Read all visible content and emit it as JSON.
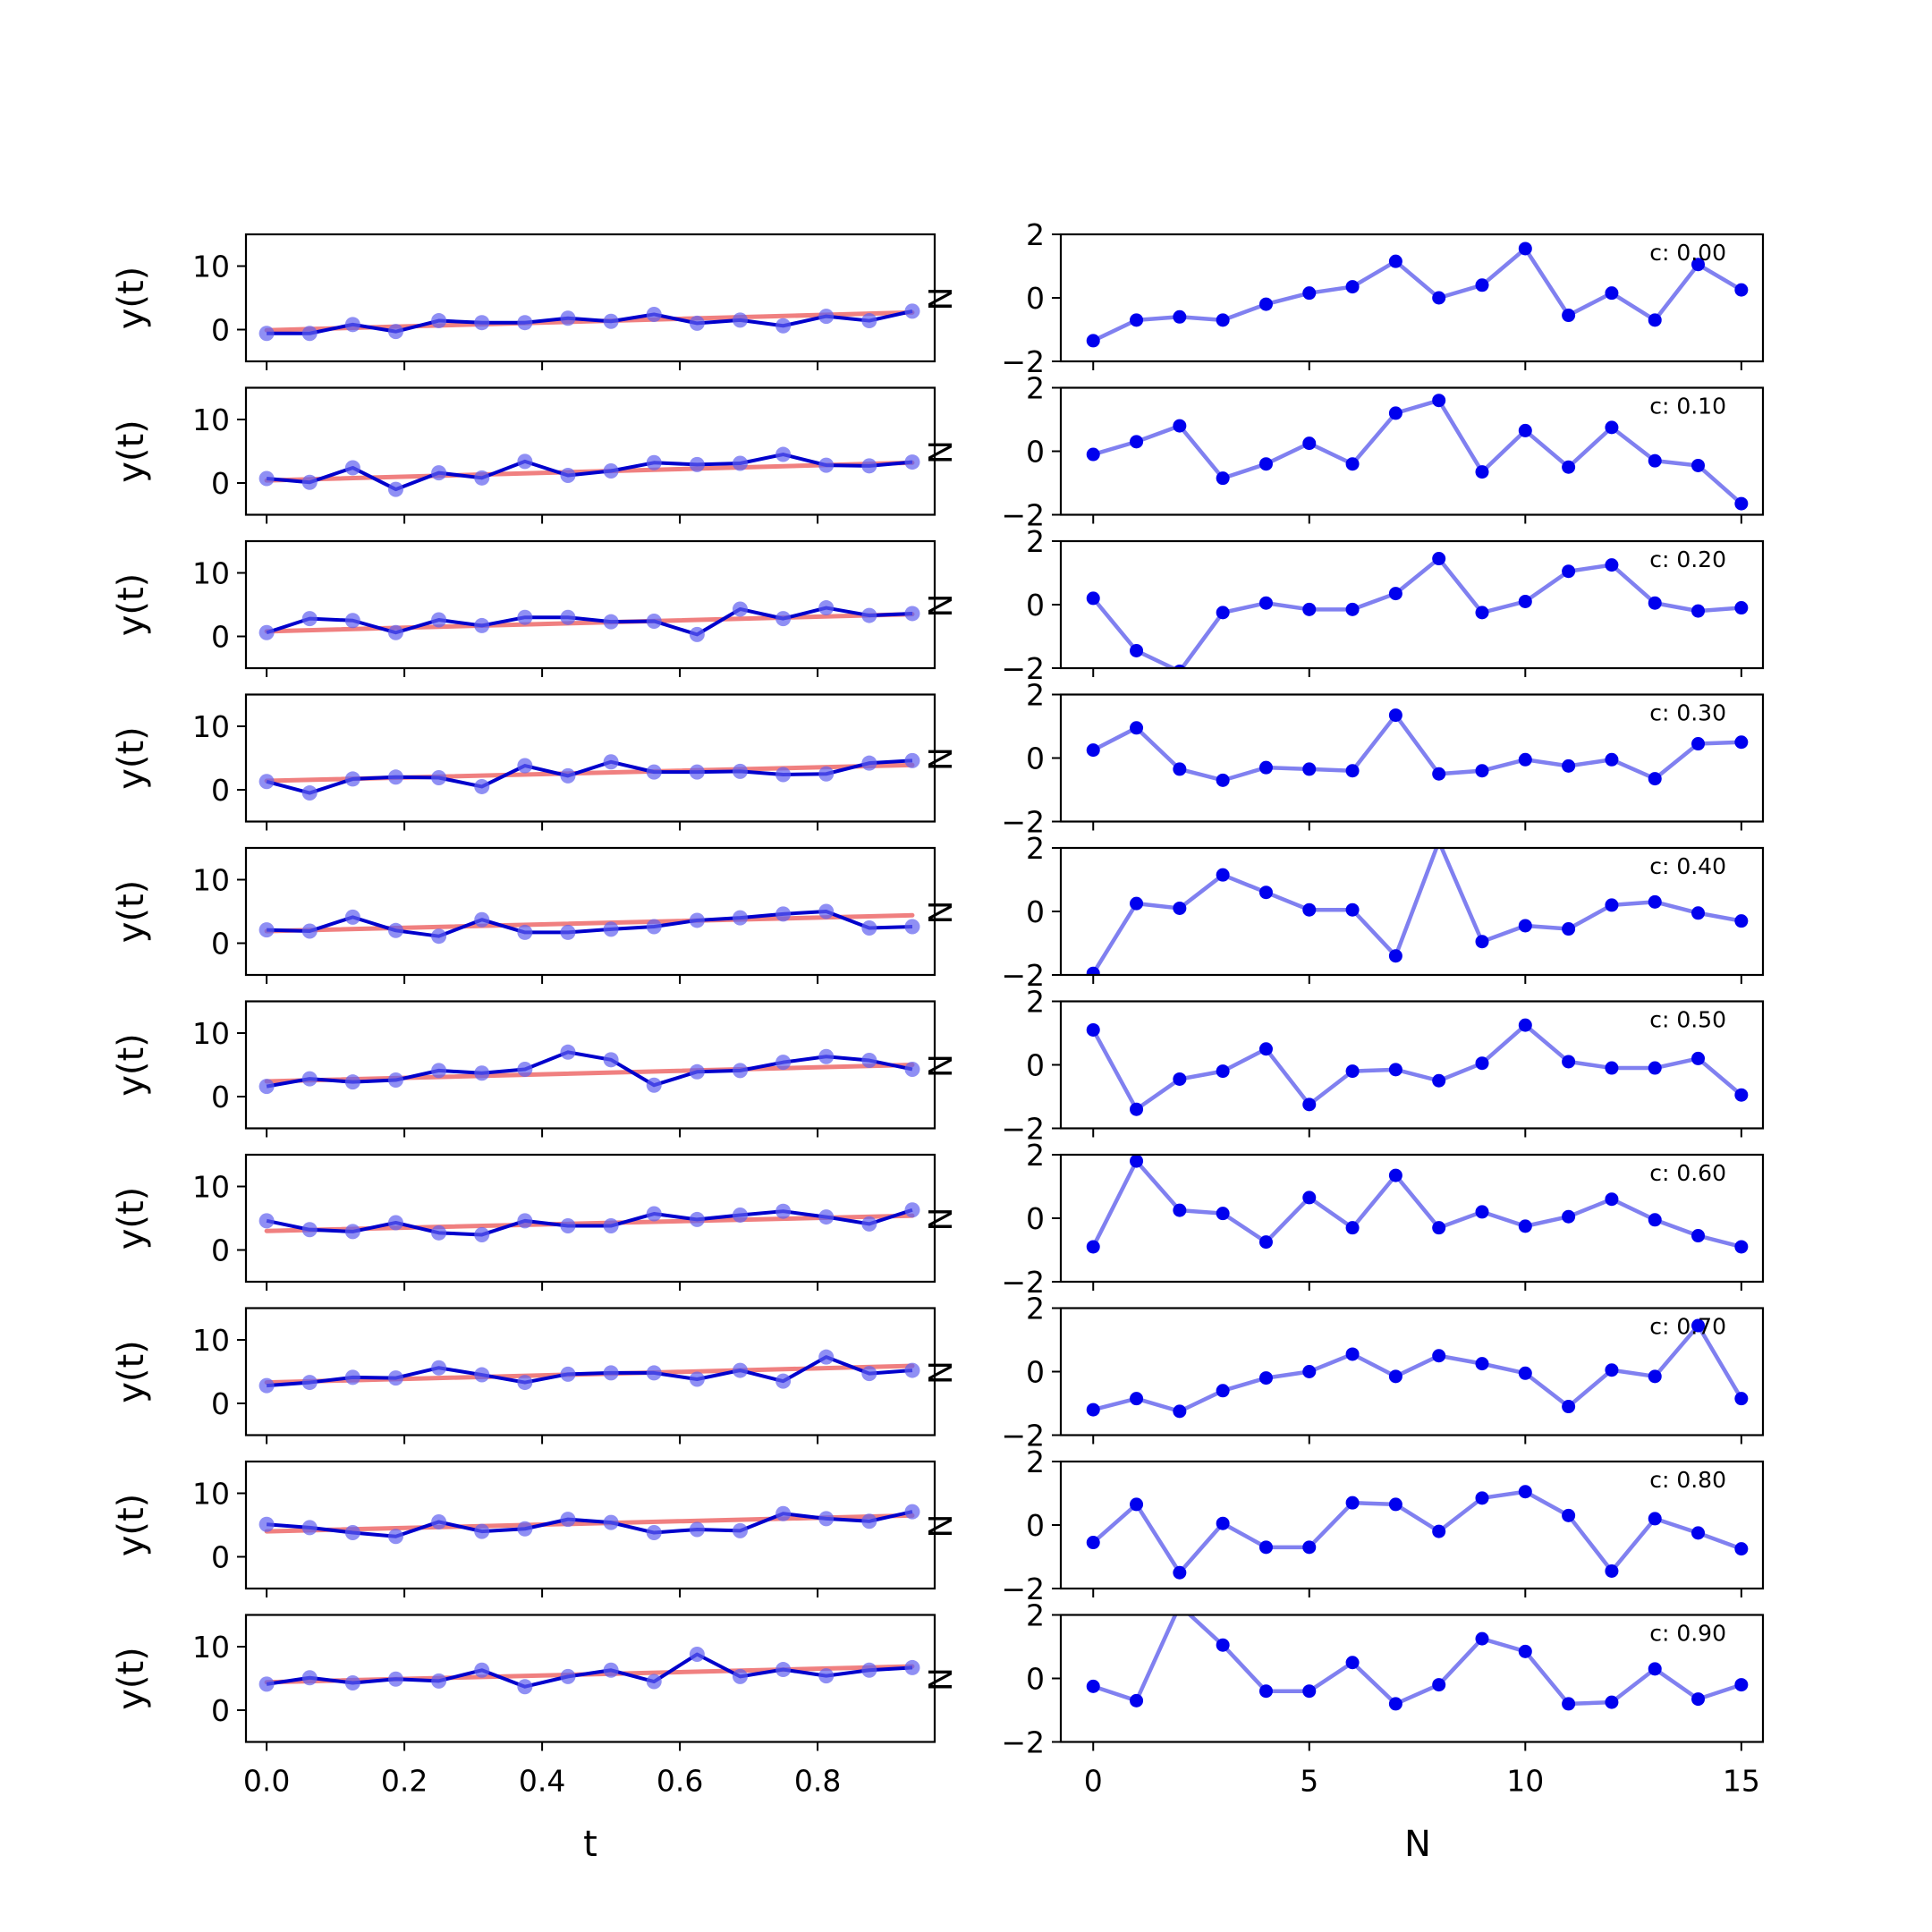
{
  "figure": {
    "left_xlabel": "t",
    "right_xlabel": "N",
    "left_ylabel": "y(t)",
    "right_ylabel_fragment": "N"
  },
  "colors": {
    "fit_line": "#f08080",
    "data_line": "#0000cc",
    "data_points": "#6060f0",
    "resid_line": "#8080f0",
    "resid_points": "#0000ee"
  },
  "chart_data": [
    {
      "type": "line",
      "panel": "left",
      "x": [
        0.0,
        0.0625,
        0.125,
        0.1875,
        0.25,
        0.3125,
        0.375,
        0.4375,
        0.5,
        0.5625,
        0.625,
        0.6875,
        0.75,
        0.8125,
        0.875,
        0.9375
      ],
      "xlim": [
        -0.03,
        0.97
      ],
      "ylim": [
        -5,
        15
      ],
      "xticks": [
        0.0,
        0.2,
        0.4,
        0.6,
        0.8
      ],
      "xtick_labels": [
        "0.0",
        "0.2",
        "0.4",
        "0.6",
        "0.8"
      ],
      "yticks": [
        0,
        10
      ],
      "ytick_labels": [
        "0",
        "10"
      ],
      "rows": [
        {
          "y": [
            -0.6,
            -0.6,
            0.8,
            -0.3,
            1.4,
            1.1,
            1.1,
            1.8,
            1.3,
            2.4,
            1.0,
            1.5,
            0.6,
            2.1,
            1.4,
            2.9
          ],
          "fit": [
            -0.1,
            2.7
          ]
        },
        {
          "y": [
            0.7,
            0.1,
            2.4,
            -1.0,
            1.6,
            0.8,
            3.4,
            1.2,
            1.9,
            3.2,
            2.9,
            3.1,
            4.5,
            2.8,
            2.7,
            3.3
          ],
          "fit": [
            0.4,
            3.2
          ]
        },
        {
          "y": [
            0.6,
            2.8,
            2.5,
            0.6,
            2.6,
            1.7,
            3.0,
            3.0,
            2.3,
            2.4,
            0.3,
            4.3,
            2.8,
            4.5,
            3.3,
            3.6
          ],
          "fit": [
            0.8,
            3.5
          ]
        },
        {
          "y": [
            1.3,
            -0.5,
            1.7,
            2.0,
            1.9,
            0.5,
            3.8,
            2.2,
            4.4,
            2.8,
            2.8,
            2.9,
            2.4,
            2.5,
            4.2,
            4.6
          ],
          "fit": [
            1.4,
            3.9
          ]
        },
        {
          "y": [
            2.1,
            1.9,
            4.1,
            2.0,
            1.1,
            3.7,
            1.7,
            1.7,
            2.2,
            2.6,
            3.6,
            4.0,
            4.6,
            5.0,
            2.4,
            2.6
          ],
          "fit": [
            1.9,
            4.4
          ]
        },
        {
          "y": [
            1.6,
            2.8,
            2.3,
            2.6,
            4.1,
            3.7,
            4.3,
            7.0,
            5.8,
            1.8,
            3.9,
            4.1,
            5.4,
            6.3,
            5.7,
            4.3
          ],
          "fit": [
            2.4,
            5.0
          ]
        },
        {
          "y": [
            4.6,
            3.2,
            2.9,
            4.3,
            2.7,
            2.4,
            4.6,
            3.8,
            3.8,
            5.7,
            4.8,
            5.5,
            6.1,
            5.2,
            4.1,
            6.3
          ],
          "fit": [
            3.0,
            5.4
          ]
        },
        {
          "y": [
            2.8,
            3.3,
            4.1,
            4.0,
            5.6,
            4.5,
            3.3,
            4.6,
            4.8,
            4.8,
            3.8,
            5.2,
            3.5,
            7.3,
            4.7,
            5.2
          ],
          "fit": [
            3.3,
            5.9
          ]
        },
        {
          "y": [
            5.1,
            4.6,
            3.8,
            3.2,
            5.5,
            4.0,
            4.4,
            5.9,
            5.4,
            3.8,
            4.3,
            4.1,
            6.8,
            6.0,
            5.6,
            7.1
          ],
          "fit": [
            4.0,
            6.5
          ]
        },
        {
          "y": [
            4.1,
            5.1,
            4.3,
            4.9,
            4.6,
            6.3,
            3.7,
            5.3,
            6.3,
            4.5,
            8.8,
            5.3,
            6.4,
            5.4,
            6.3,
            6.7
          ],
          "fit": [
            4.4,
            6.9
          ]
        }
      ]
    },
    {
      "type": "line",
      "panel": "right",
      "x": [
        0,
        1,
        2,
        3,
        4,
        5,
        6,
        7,
        8,
        9,
        10,
        11,
        12,
        13,
        14,
        15
      ],
      "xlim": [
        -0.75,
        15.5
      ],
      "ylim": [
        -2,
        2
      ],
      "xticks": [
        0,
        5,
        10,
        15
      ],
      "xtick_labels": [
        "0",
        "5",
        "10",
        "15"
      ],
      "yticks": [
        -2,
        0,
        2
      ],
      "ytick_labels": [
        "−2",
        "0",
        "2"
      ],
      "rows": [
        {
          "label": "c: 0.00",
          "y": [
            -1.35,
            -0.7,
            -0.6,
            -0.7,
            -0.2,
            0.15,
            0.35,
            1.15,
            0.0,
            0.4,
            1.55,
            -0.55,
            0.15,
            -0.7,
            1.05,
            0.25
          ]
        },
        {
          "label": "c: 0.10",
          "y": [
            -0.1,
            0.3,
            0.8,
            -0.85,
            -0.4,
            0.25,
            -0.4,
            1.2,
            1.6,
            -0.65,
            0.65,
            -0.5,
            0.75,
            -0.3,
            -0.45,
            -1.65
          ]
        },
        {
          "label": "c: 0.20",
          "y": [
            0.2,
            -1.45,
            -2.1,
            -0.25,
            0.05,
            -0.15,
            -0.15,
            0.35,
            1.45,
            -0.25,
            0.1,
            1.05,
            1.25,
            0.05,
            -0.2,
            -0.1
          ]
        },
        {
          "label": "c: 0.30",
          "y": [
            0.25,
            0.95,
            -0.35,
            -0.7,
            -0.3,
            -0.35,
            -0.4,
            1.35,
            -0.5,
            -0.4,
            -0.05,
            -0.25,
            -0.05,
            -0.65,
            0.45,
            0.5
          ]
        },
        {
          "label": "c: 0.40",
          "y": [
            -1.95,
            0.25,
            0.1,
            1.15,
            0.6,
            0.05,
            0.05,
            -1.4,
            2.2,
            -0.95,
            -0.45,
            -0.55,
            0.2,
            0.3,
            -0.05,
            -0.3
          ]
        },
        {
          "label": "c: 0.50",
          "y": [
            1.1,
            -1.4,
            -0.45,
            -0.2,
            0.5,
            -1.25,
            -0.2,
            -0.15,
            -0.5,
            0.05,
            1.25,
            0.1,
            -0.1,
            -0.1,
            0.2,
            -0.95
          ]
        },
        {
          "label": "c: 0.60",
          "y": [
            -0.9,
            1.8,
            0.25,
            0.15,
            -0.75,
            0.65,
            -0.3,
            1.35,
            -0.3,
            0.2,
            -0.25,
            0.05,
            0.6,
            -0.05,
            -0.55,
            -0.9
          ]
        },
        {
          "label": "c: 0.70",
          "y": [
            -1.2,
            -0.85,
            -1.25,
            -0.6,
            -0.2,
            0.0,
            0.55,
            -0.15,
            0.5,
            0.25,
            -0.05,
            -1.1,
            0.05,
            -0.15,
            1.45,
            -0.85
          ]
        },
        {
          "label": "c: 0.80",
          "y": [
            -0.55,
            0.65,
            -1.5,
            0.05,
            -0.7,
            -0.7,
            0.7,
            0.65,
            -0.2,
            0.85,
            1.05,
            0.3,
            -1.45,
            0.2,
            -0.25,
            -0.75
          ]
        },
        {
          "label": "c: 0.90",
          "y": [
            -0.25,
            -0.7,
            2.3,
            1.05,
            -0.4,
            -0.4,
            0.5,
            -0.8,
            -0.2,
            1.25,
            0.85,
            -0.8,
            -0.75,
            0.3,
            -0.65,
            -0.2
          ]
        }
      ]
    }
  ]
}
